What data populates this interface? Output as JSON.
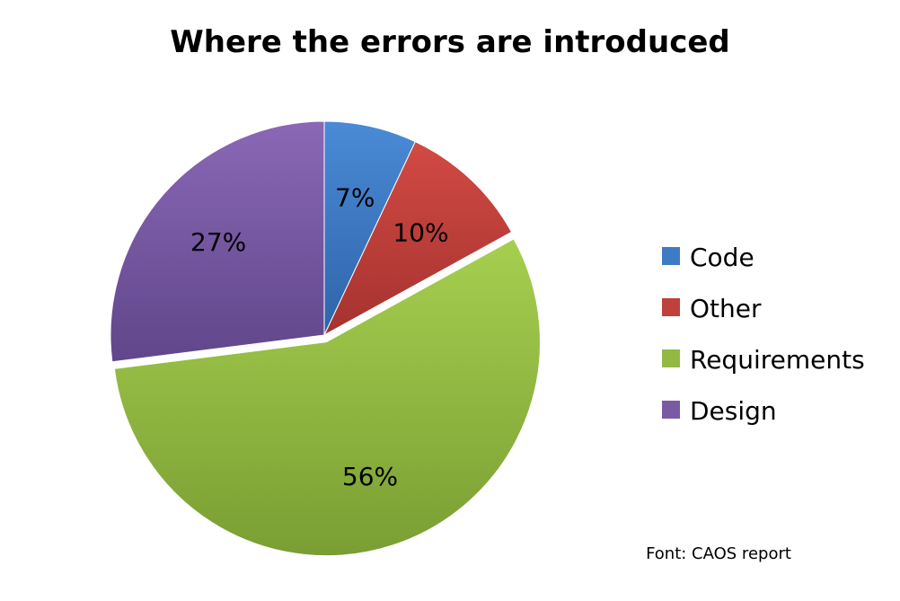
{
  "chart_data": {
    "type": "pie",
    "title": "Where the errors are introduced",
    "slices": [
      {
        "label": "Code",
        "value": 7,
        "display": "7%",
        "color": "#3d7bc4"
      },
      {
        "label": "Other",
        "value": 10,
        "display": "10%",
        "color": "#c0403c"
      },
      {
        "label": "Requirements",
        "value": 56,
        "display": "56%",
        "color": "#93b944",
        "exploded": true
      },
      {
        "label": "Design",
        "value": 27,
        "display": "27%",
        "color": "#7a5ba3"
      }
    ],
    "legend": {
      "placement": "right",
      "entries": [
        "Code",
        "Other",
        "Requirements",
        "Design"
      ]
    },
    "source": "Font: CAOS report"
  }
}
